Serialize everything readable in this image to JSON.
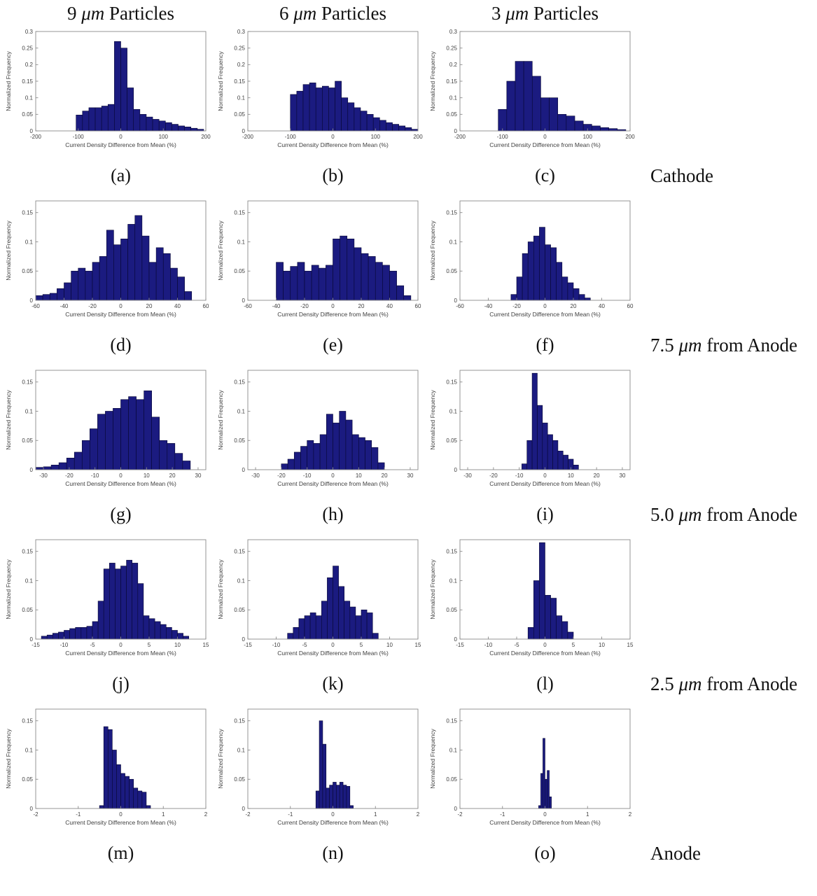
{
  "column_headers": [
    {
      "num": "9 ",
      "unit": "μm",
      "word": " Particles"
    },
    {
      "num": "6 ",
      "unit": "μm",
      "word": " Particles"
    },
    {
      "num": "3 ",
      "unit": "μm",
      "word": " Particles"
    }
  ],
  "row_labels": [
    {
      "prefix": "",
      "unit": "",
      "suffix": "Cathode"
    },
    {
      "prefix": "7.5 ",
      "unit": "μm",
      "suffix": " from Anode"
    },
    {
      "prefix": "5.0 ",
      "unit": "μm",
      "suffix": " from Anode"
    },
    {
      "prefix": "2.5 ",
      "unit": "μm",
      "suffix": " from Anode"
    },
    {
      "prefix": "",
      "unit": "",
      "suffix": "Anode"
    }
  ],
  "axis_labels": {
    "x": "Current Density Difference from Mean (%)",
    "y": "Normalized Frequency"
  },
  "style": {
    "bar_fill": "#1b1b80",
    "bar_edge": "#070733",
    "axis_color": "#8a8a8a",
    "text_color": "#404040"
  },
  "chart_data": [
    {
      "type": "bar",
      "label": "(a)",
      "xlim": [
        -200,
        200
      ],
      "ylim": [
        0,
        0.3
      ],
      "xticks": [
        -200,
        -100,
        0,
        100,
        200
      ],
      "yticks": [
        0,
        0.05,
        0.1,
        0.15,
        0.2,
        0.25,
        0.3
      ],
      "bin_start": -105,
      "bin_width": 15,
      "values": [
        0.048,
        0.06,
        0.07,
        0.07,
        0.075,
        0.08,
        0.27,
        0.25,
        0.13,
        0.065,
        0.05,
        0.042,
        0.035,
        0.03,
        0.025,
        0.02,
        0.015,
        0.012,
        0.008,
        0.005
      ]
    },
    {
      "type": "bar",
      "label": "(b)",
      "xlim": [
        -200,
        200
      ],
      "ylim": [
        0,
        0.3
      ],
      "xticks": [
        -200,
        -100,
        0,
        100,
        200
      ],
      "yticks": [
        0,
        0.05,
        0.1,
        0.15,
        0.2,
        0.25,
        0.3
      ],
      "bin_start": -100,
      "bin_width": 15,
      "values": [
        0.11,
        0.12,
        0.14,
        0.145,
        0.13,
        0.135,
        0.13,
        0.15,
        0.1,
        0.085,
        0.07,
        0.06,
        0.05,
        0.04,
        0.032,
        0.025,
        0.02,
        0.015,
        0.01,
        0.005
      ]
    },
    {
      "type": "bar",
      "label": "(c)",
      "xlim": [
        -200,
        200
      ],
      "ylim": [
        0,
        0.3
      ],
      "xticks": [
        -200,
        -100,
        0,
        100,
        200
      ],
      "yticks": [
        0,
        0.05,
        0.1,
        0.15,
        0.2,
        0.25,
        0.3
      ],
      "bin_start": -110,
      "bin_width": 20,
      "values": [
        0.065,
        0.15,
        0.21,
        0.21,
        0.165,
        0.1,
        0.1,
        0.05,
        0.045,
        0.03,
        0.02,
        0.015,
        0.01,
        0.007,
        0.004
      ]
    },
    {
      "type": "bar",
      "label": "(d)",
      "xlim": [
        -60,
        60
      ],
      "ylim": [
        0,
        0.17
      ],
      "xticks": [
        -60,
        -40,
        -20,
        0,
        20,
        40,
        60
      ],
      "yticks": [
        0,
        0.05,
        0.1,
        0.15
      ],
      "bin_start": -60,
      "bin_width": 5,
      "values": [
        0.008,
        0.01,
        0.012,
        0.02,
        0.03,
        0.05,
        0.055,
        0.05,
        0.065,
        0.075,
        0.12,
        0.095,
        0.105,
        0.13,
        0.145,
        0.11,
        0.065,
        0.09,
        0.08,
        0.055,
        0.04,
        0.015
      ]
    },
    {
      "type": "bar",
      "label": "(e)",
      "xlim": [
        -60,
        60
      ],
      "ylim": [
        0,
        0.17
      ],
      "xticks": [
        -60,
        -40,
        -20,
        0,
        20,
        40,
        60
      ],
      "yticks": [
        0,
        0.05,
        0.1,
        0.15
      ],
      "bin_start": -40,
      "bin_width": 5,
      "values": [
        0.065,
        0.05,
        0.058,
        0.065,
        0.05,
        0.06,
        0.055,
        0.06,
        0.105,
        0.11,
        0.105,
        0.09,
        0.08,
        0.075,
        0.065,
        0.06,
        0.05,
        0.025,
        0.008
      ]
    },
    {
      "type": "bar",
      "label": "(f)",
      "xlim": [
        -60,
        60
      ],
      "ylim": [
        0,
        0.17
      ],
      "xticks": [
        -60,
        -40,
        -20,
        0,
        20,
        40,
        60
      ],
      "yticks": [
        0,
        0.05,
        0.1,
        0.15
      ],
      "bin_start": -24,
      "bin_width": 4,
      "values": [
        0.01,
        0.04,
        0.08,
        0.1,
        0.11,
        0.125,
        0.095,
        0.09,
        0.065,
        0.04,
        0.03,
        0.02,
        0.01,
        0.004
      ]
    },
    {
      "type": "bar",
      "label": "(g)",
      "xlim": [
        -33,
        33
      ],
      "ylim": [
        0,
        0.17
      ],
      "xticks": [
        -30,
        -20,
        -10,
        0,
        10,
        20,
        30
      ],
      "yticks": [
        0,
        0.05,
        0.1,
        0.15
      ],
      "bin_start": -33,
      "bin_width": 3,
      "values": [
        0.004,
        0.005,
        0.008,
        0.012,
        0.02,
        0.03,
        0.05,
        0.07,
        0.095,
        0.1,
        0.105,
        0.12,
        0.125,
        0.12,
        0.135,
        0.09,
        0.05,
        0.045,
        0.028,
        0.015
      ]
    },
    {
      "type": "bar",
      "label": "(h)",
      "xlim": [
        -33,
        33
      ],
      "ylim": [
        0,
        0.17
      ],
      "xticks": [
        -30,
        -20,
        -10,
        0,
        10,
        20,
        30
      ],
      "yticks": [
        0,
        0.05,
        0.1,
        0.15
      ],
      "bin_start": -20,
      "bin_width": 2.5,
      "values": [
        0.01,
        0.018,
        0.03,
        0.04,
        0.05,
        0.045,
        0.06,
        0.095,
        0.08,
        0.1,
        0.085,
        0.06,
        0.055,
        0.05,
        0.038,
        0.012
      ]
    },
    {
      "type": "bar",
      "label": "(i)",
      "xlim": [
        -33,
        33
      ],
      "ylim": [
        0,
        0.17
      ],
      "xticks": [
        -30,
        -20,
        -10,
        0,
        10,
        20,
        30
      ],
      "yticks": [
        0,
        0.05,
        0.1,
        0.15
      ],
      "bin_start": -9,
      "bin_width": 2,
      "values": [
        0.01,
        0.05,
        0.165,
        0.11,
        0.08,
        0.06,
        0.05,
        0.032,
        0.025,
        0.018,
        0.008
      ]
    },
    {
      "type": "bar",
      "label": "(j)",
      "xlim": [
        -15,
        15
      ],
      "ylim": [
        0,
        0.17
      ],
      "xticks": [
        -15,
        -10,
        -5,
        0,
        5,
        10,
        15
      ],
      "yticks": [
        0,
        0.05,
        0.1,
        0.15
      ],
      "bin_start": -14,
      "bin_width": 1,
      "values": [
        0.005,
        0.007,
        0.01,
        0.012,
        0.015,
        0.018,
        0.02,
        0.02,
        0.022,
        0.03,
        0.065,
        0.12,
        0.13,
        0.12,
        0.125,
        0.135,
        0.13,
        0.095,
        0.04,
        0.035,
        0.03,
        0.025,
        0.02,
        0.015,
        0.01,
        0.005
      ]
    },
    {
      "type": "bar",
      "label": "(k)",
      "xlim": [
        -15,
        15
      ],
      "ylim": [
        0,
        0.17
      ],
      "xticks": [
        -15,
        -10,
        -5,
        0,
        5,
        10,
        15
      ],
      "yticks": [
        0,
        0.05,
        0.1,
        0.15
      ],
      "bin_start": -8,
      "bin_width": 1,
      "values": [
        0.01,
        0.02,
        0.035,
        0.04,
        0.045,
        0.04,
        0.065,
        0.105,
        0.125,
        0.09,
        0.065,
        0.055,
        0.04,
        0.05,
        0.045,
        0.01
      ]
    },
    {
      "type": "bar",
      "label": "(l)",
      "xlim": [
        -15,
        15
      ],
      "ylim": [
        0,
        0.17
      ],
      "xticks": [
        -15,
        -10,
        -5,
        0,
        5,
        10,
        15
      ],
      "yticks": [
        0,
        0.05,
        0.1,
        0.15
      ],
      "bin_start": -3,
      "bin_width": 1,
      "values": [
        0.02,
        0.1,
        0.165,
        0.075,
        0.07,
        0.04,
        0.03,
        0.012
      ]
    },
    {
      "type": "bar",
      "label": "(m)",
      "xlim": [
        -2,
        2
      ],
      "ylim": [
        0,
        0.17
      ],
      "xticks": [
        -2,
        -1,
        0,
        1,
        2
      ],
      "yticks": [
        0,
        0.05,
        0.1,
        0.15
      ],
      "bin_start": -0.5,
      "bin_width": 0.1,
      "values": [
        0.005,
        0.14,
        0.135,
        0.1,
        0.075,
        0.06,
        0.055,
        0.05,
        0.035,
        0.03,
        0.028,
        0.005
      ]
    },
    {
      "type": "bar",
      "label": "(n)",
      "xlim": [
        -2,
        2
      ],
      "ylim": [
        0,
        0.17
      ],
      "xticks": [
        -2,
        -1,
        0,
        1,
        2
      ],
      "yticks": [
        0,
        0.05,
        0.1,
        0.15
      ],
      "bin_start": -0.4,
      "bin_width": 0.08,
      "values": [
        0.03,
        0.15,
        0.11,
        0.035,
        0.04,
        0.045,
        0.04,
        0.045,
        0.04,
        0.038,
        0.005
      ]
    },
    {
      "type": "bar",
      "label": "(o)",
      "xlim": [
        -2,
        2
      ],
      "ylim": [
        0,
        0.17
      ],
      "xticks": [
        -2,
        -1,
        0,
        1,
        2
      ],
      "yticks": [
        0,
        0.05,
        0.1,
        0.15
      ],
      "bin_start": -0.15,
      "bin_width": 0.05,
      "values": [
        0.005,
        0.06,
        0.12,
        0.05,
        0.065,
        0.02
      ]
    }
  ]
}
